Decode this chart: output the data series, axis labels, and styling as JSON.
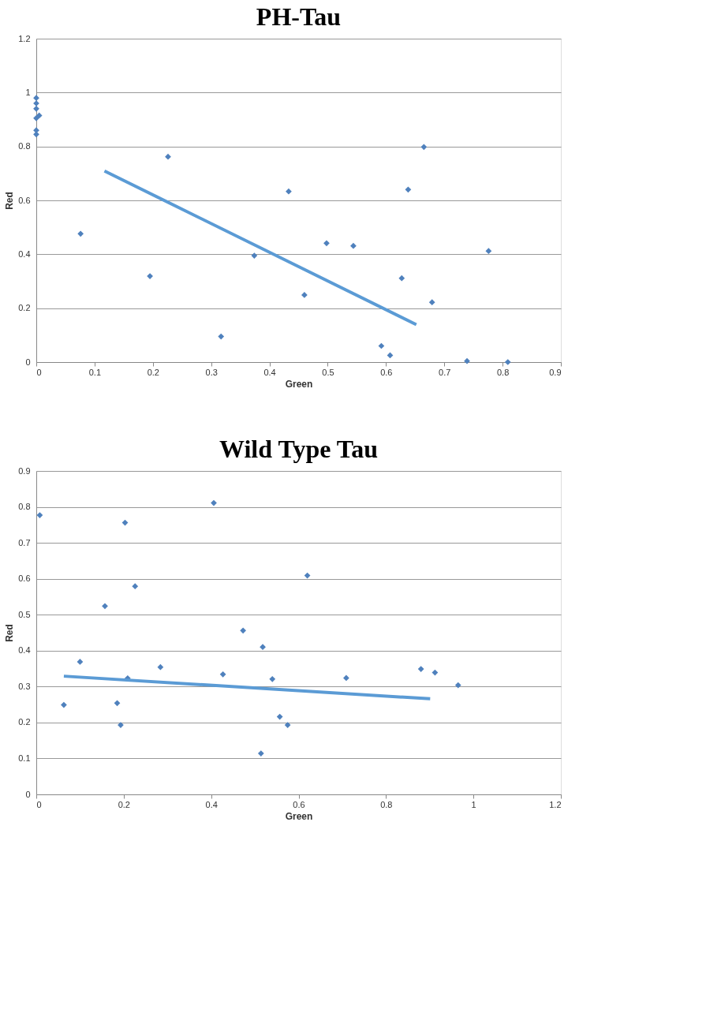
{
  "chart_data": [
    {
      "type": "scatter",
      "title": "PH-Tau",
      "xlabel": "Green",
      "ylabel": "Red",
      "xlim": [
        0,
        0.9
      ],
      "xticks": [
        0,
        0.1,
        0.2,
        0.3,
        0.4,
        0.5,
        0.6,
        0.7,
        0.8,
        0.9
      ],
      "ylim": [
        0,
        1.2
      ],
      "yticks": [
        0,
        0.2,
        0.4,
        0.6,
        0.8,
        1,
        1.2
      ],
      "grid": "y",
      "marker": "diamond",
      "series": [
        {
          "type": "scatter",
          "color": "#4f81bd",
          "x": [
            0,
            0,
            0,
            0.005,
            0,
            0,
            0,
            0.076,
            0.195,
            0.226,
            0.317,
            0.374,
            0.433,
            0.46,
            0.498,
            0.544,
            0.592,
            0.607,
            0.627,
            0.638,
            0.665,
            0.679,
            0.739,
            0.776,
            0.809
          ],
          "values": [
            0.98,
            0.96,
            0.94,
            0.915,
            0.905,
            0.86,
            0.845,
            0.476,
            0.319,
            0.762,
            0.095,
            0.395,
            0.633,
            0.249,
            0.441,
            0.431,
            0.06,
            0.025,
            0.311,
            0.64,
            0.798,
            0.222,
            0.004,
            0.412,
            0.0
          ]
        },
        {
          "type": "line",
          "color": "#5b9bd5",
          "marker": "none",
          "x": [
            0.117,
            0.652
          ],
          "values": [
            0.709,
            0.139
          ]
        }
      ]
    },
    {
      "type": "scatter",
      "title": "Wild Type Tau",
      "xlabel": "Green",
      "ylabel": "Red",
      "xlim": [
        0,
        1.2
      ],
      "xticks": [
        0,
        0.2,
        0.4,
        0.6,
        0.8,
        1,
        1.2
      ],
      "ylim": [
        0,
        0.9
      ],
      "yticks": [
        0,
        0.1,
        0.2,
        0.3,
        0.4,
        0.5,
        0.6,
        0.7,
        0.8,
        0.9
      ],
      "grid": "y",
      "marker": "diamond",
      "series": [
        {
          "type": "scatter",
          "color": "#4f81bd",
          "x": [
            0.008,
            0.406,
            0.203,
            0.62,
            0.226,
            0.157,
            0.473,
            0.518,
            0.1,
            0.284,
            0.427,
            0.209,
            0.54,
            0.709,
            0.88,
            0.912,
            0.965,
            0.063,
            0.185,
            0.193,
            0.557,
            0.575,
            0.514
          ],
          "values": [
            0.777,
            0.811,
            0.756,
            0.609,
            0.579,
            0.524,
            0.456,
            0.41,
            0.369,
            0.354,
            0.334,
            0.323,
            0.321,
            0.324,
            0.349,
            0.339,
            0.304,
            0.249,
            0.254,
            0.193,
            0.216,
            0.193,
            0.114
          ]
        },
        {
          "type": "line",
          "color": "#5b9bd5",
          "marker": "none",
          "x": [
            0.063,
            0.901
          ],
          "values": [
            0.329,
            0.266
          ]
        }
      ]
    }
  ]
}
